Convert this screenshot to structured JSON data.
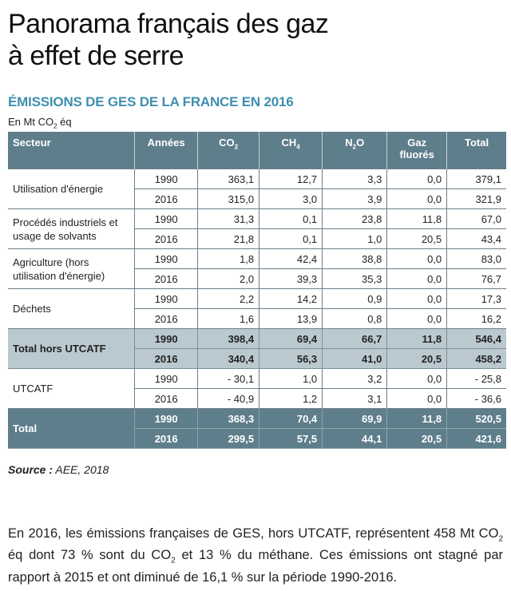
{
  "title": {
    "line1": "Panorama français des gaz",
    "line2": "à effet de serre"
  },
  "subtitle": "ÉMISSIONS DE GES DE LA FRANCE EN 2016",
  "units": {
    "prefix": "En Mt CO",
    "sub": "2",
    "suffix": " éq"
  },
  "table": {
    "headers": {
      "sector": "Secteur",
      "years": "Années",
      "co2": {
        "base": "CO",
        "sub": "2"
      },
      "ch4": {
        "base": "CH",
        "sub": "4"
      },
      "n2o": {
        "base": "N",
        "sub": "2",
        "end": "O"
      },
      "gaz": "Gaz fluorés",
      "total": "Total"
    },
    "rows": [
      {
        "sector": "Utilisation d'énergie",
        "style": "normal",
        "data": [
          {
            "year": "1990",
            "co2": "363,1",
            "ch4": "12,7",
            "n2o": "3,3",
            "gaz": "0,0",
            "total": "379,1"
          },
          {
            "year": "2016",
            "co2": "315,0",
            "ch4": "3,0",
            "n2o": "3,9",
            "gaz": "0,0",
            "total": "321,9"
          }
        ]
      },
      {
        "sector": "Procédés industriels et usage de solvants",
        "style": "normal",
        "data": [
          {
            "year": "1990",
            "co2": "31,3",
            "ch4": "0,1",
            "n2o": "23,8",
            "gaz": "11,8",
            "total": "67,0"
          },
          {
            "year": "2016",
            "co2": "21,8",
            "ch4": "0,1",
            "n2o": "1,0",
            "gaz": "20,5",
            "total": "43,4"
          }
        ]
      },
      {
        "sector": "Agriculture (hors utilisation d'énergie)",
        "style": "normal",
        "data": [
          {
            "year": "1990",
            "co2": "1,8",
            "ch4": "42,4",
            "n2o": "38,8",
            "gaz": "0,0",
            "total": "83,0"
          },
          {
            "year": "2016",
            "co2": "2,0",
            "ch4": "39,3",
            "n2o": "35,3",
            "gaz": "0,0",
            "total": "76,7"
          }
        ]
      },
      {
        "sector": "Déchets",
        "style": "normal",
        "data": [
          {
            "year": "1990",
            "co2": "2,2",
            "ch4": "14,2",
            "n2o": "0,9",
            "gaz": "0,0",
            "total": "17,3"
          },
          {
            "year": "2016",
            "co2": "1,6",
            "ch4": "13,9",
            "n2o": "0,8",
            "gaz": "0,0",
            "total": "16,2"
          }
        ]
      },
      {
        "sector": "Total hors UTCATF",
        "style": "bold",
        "data": [
          {
            "year": "1990",
            "co2": "398,4",
            "ch4": "69,4",
            "n2o": "66,7",
            "gaz": "11,8",
            "total": "546,4"
          },
          {
            "year": "2016",
            "co2": "340,4",
            "ch4": "56,3",
            "n2o": "41,0",
            "gaz": "20,5",
            "total": "458,2"
          }
        ]
      },
      {
        "sector": "UTCATF",
        "style": "normal",
        "data": [
          {
            "year": "1990",
            "co2": "- 30,1",
            "ch4": "1,0",
            "n2o": "3,2",
            "gaz": "0,0",
            "total": "- 25,8"
          },
          {
            "year": "2016",
            "co2": "- 40,9",
            "ch4": "1,2",
            "n2o": "3,1",
            "gaz": "0,0",
            "total": "- 36,6"
          }
        ]
      },
      {
        "sector": "Total",
        "style": "total",
        "data": [
          {
            "year": "1990",
            "co2": "368,3",
            "ch4": "70,4",
            "n2o": "69,9",
            "gaz": "11,8",
            "total": "520,5"
          },
          {
            "year": "2016",
            "co2": "299,5",
            "ch4": "57,5",
            "n2o": "44,1",
            "gaz": "20,5",
            "total": "421,6"
          }
        ]
      }
    ]
  },
  "source": {
    "label": "Source :",
    "text": " AEE, 2018"
  },
  "paragraph": {
    "part1": "En 2016, les émissions françaises de GES, hors UTCATF, représentent 458 Mt CO",
    "sub1": "2",
    "part2": " éq dont 73 % sont du CO",
    "sub2": "2",
    "part3": " et 13 % du méthane. Ces émissions ont stagné par rapport à 2015 et ont diminué de 16,1 % sur la période 1990-2016."
  },
  "colors": {
    "header_bg": "#5e7e8b",
    "highlight_bg": "#bac9cf",
    "subtitle": "#3f8fb0"
  }
}
